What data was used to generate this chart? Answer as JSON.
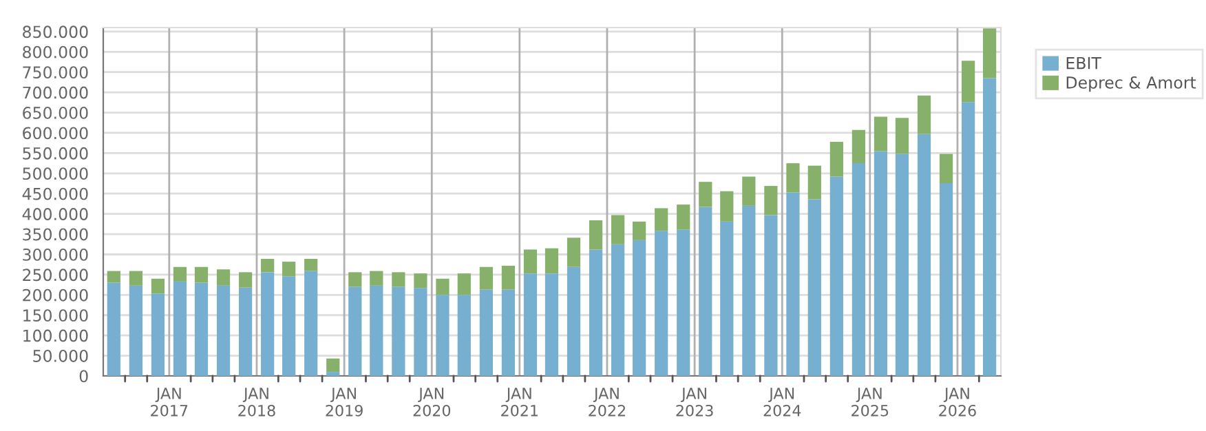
{
  "chart_data": {
    "type": "bar",
    "stacked": true,
    "x": [
      "2016-05-15",
      "2016-08-15",
      "2016-11-15",
      "2017-02-15",
      "2017-05-15",
      "2017-08-15",
      "2017-11-15",
      "2018-02-15",
      "2018-05-15",
      "2018-08-15",
      "2018-11-15",
      "2019-02-15",
      "2019-05-15",
      "2019-08-15",
      "2019-11-15",
      "2020-02-15",
      "2020-05-15",
      "2020-08-15",
      "2020-11-15",
      "2021-02-15",
      "2021-05-15",
      "2021-08-15",
      "2021-11-15",
      "2022-02-15",
      "2022-05-15",
      "2022-08-15",
      "2022-11-15",
      "2023-02-15",
      "2023-05-15",
      "2023-08-15",
      "2023-11-15",
      "2024-02-15",
      "2024-05-15",
      "2024-08-15",
      "2024-11-15",
      "2025-02-15",
      "2025-05-15",
      "2025-08-15",
      "2025-11-15",
      "2026-02-15",
      "2026-05-15"
    ],
    "series": [
      {
        "name": "EBIT",
        "color": "#77afd0",
        "values": [
          230000,
          223000,
          203000,
          233000,
          230000,
          223000,
          218000,
          256000,
          246000,
          259000,
          10000,
          220000,
          223000,
          220000,
          217000,
          200000,
          200000,
          213000,
          213000,
          253000,
          253000,
          269000,
          312000,
          325000,
          335000,
          358000,
          361000,
          417000,
          381000,
          420000,
          397000,
          453000,
          436000,
          492000,
          525000,
          555000,
          548000,
          597000,
          476000,
          676000,
          735000
        ]
      },
      {
        "name": "Deprec & Amort",
        "color": "#87b06a",
        "values": [
          29000,
          36000,
          37000,
          36000,
          39000,
          40000,
          38000,
          33000,
          36000,
          30000,
          33000,
          36000,
          36000,
          36000,
          36000,
          40000,
          53000,
          56000,
          59000,
          59000,
          62000,
          72000,
          72000,
          72000,
          46000,
          56000,
          62000,
          62000,
          75000,
          72000,
          72000,
          72000,
          83000,
          86000,
          82000,
          85000,
          89000,
          95000,
          72000,
          102000,
          123000
        ]
      }
    ],
    "xlim": [
      "2016-04-01",
      "2026-07-01"
    ],
    "xticks": [
      {
        "value": "2016-07-01",
        "label": null
      },
      {
        "value": "2016-10-01",
        "label": null
      },
      {
        "value": "2017-01-01",
        "label": "JAN\n2017"
      },
      {
        "value": "2017-04-01",
        "label": null
      },
      {
        "value": "2017-07-01",
        "label": null
      },
      {
        "value": "2017-10-01",
        "label": null
      },
      {
        "value": "2018-01-01",
        "label": "JAN\n2018"
      },
      {
        "value": "2018-04-01",
        "label": null
      },
      {
        "value": "2018-07-01",
        "label": null
      },
      {
        "value": "2018-10-01",
        "label": null
      },
      {
        "value": "2019-01-01",
        "label": "JAN\n2019"
      },
      {
        "value": "2019-04-01",
        "label": null
      },
      {
        "value": "2019-07-01",
        "label": null
      },
      {
        "value": "2019-10-01",
        "label": null
      },
      {
        "value": "2020-01-01",
        "label": "JAN\n2020"
      },
      {
        "value": "2020-04-01",
        "label": null
      },
      {
        "value": "2020-07-01",
        "label": null
      },
      {
        "value": "2020-10-01",
        "label": null
      },
      {
        "value": "2021-01-01",
        "label": "JAN\n2021"
      },
      {
        "value": "2021-04-01",
        "label": null
      },
      {
        "value": "2021-07-01",
        "label": null
      },
      {
        "value": "2021-10-01",
        "label": null
      },
      {
        "value": "2022-01-01",
        "label": "JAN\n2022"
      },
      {
        "value": "2022-04-01",
        "label": null
      },
      {
        "value": "2022-07-01",
        "label": null
      },
      {
        "value": "2022-10-01",
        "label": null
      },
      {
        "value": "2023-01-01",
        "label": "JAN\n2023"
      },
      {
        "value": "2023-04-01",
        "label": null
      },
      {
        "value": "2023-07-01",
        "label": null
      },
      {
        "value": "2023-10-01",
        "label": null
      },
      {
        "value": "2024-01-01",
        "label": "JAN\n2024"
      },
      {
        "value": "2024-04-01",
        "label": null
      },
      {
        "value": "2024-07-01",
        "label": null
      },
      {
        "value": "2024-10-01",
        "label": null
      },
      {
        "value": "2025-01-01",
        "label": "JAN\n2025"
      },
      {
        "value": "2025-04-01",
        "label": null
      },
      {
        "value": "2025-07-01",
        "label": null
      },
      {
        "value": "2025-10-01",
        "label": null
      },
      {
        "value": "2026-01-01",
        "label": "JAN\n2026"
      },
      {
        "value": "2026-04-01",
        "label": null
      }
    ],
    "ylim": [
      0,
      860000
    ],
    "yticks": [
      0,
      {
        "value": 50000,
        "label": "50.000"
      },
      {
        "value": 100000,
        "label": "100.000"
      },
      {
        "value": 150000,
        "label": "150.000"
      },
      {
        "value": 200000,
        "label": "200.000"
      },
      {
        "value": 250000,
        "label": "250.000"
      },
      {
        "value": 300000,
        "label": "300.000"
      },
      {
        "value": 350000,
        "label": "350.000"
      },
      {
        "value": 400000,
        "label": "400.000"
      },
      {
        "value": 450000,
        "label": "450.000"
      },
      {
        "value": 500000,
        "label": "500.000"
      },
      {
        "value": 550000,
        "label": "550.000"
      },
      {
        "value": 600000,
        "label": "600.000"
      },
      {
        "value": 650000,
        "label": "650.000"
      },
      {
        "value": 700000,
        "label": "700.000"
      },
      {
        "value": 750000,
        "label": "750.000"
      },
      {
        "value": 800000,
        "label": "800.000"
      },
      {
        "value": 850000,
        "label": "850.000"
      }
    ],
    "grid": true,
    "legend": "top right"
  }
}
